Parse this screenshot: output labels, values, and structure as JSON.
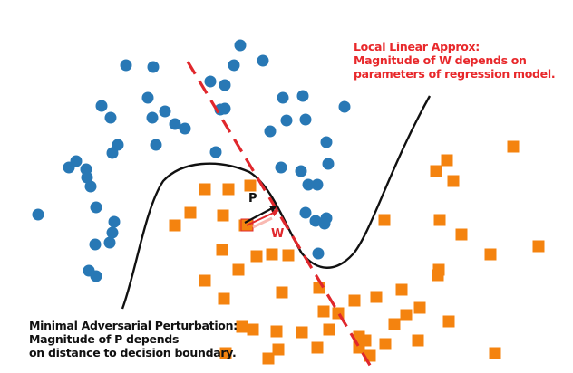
{
  "annotations": {
    "local_linear": [
      "Local Linear Approx:",
      "Magnitude of W depends on",
      "parameters of regression model."
    ],
    "minimal_perturbation": [
      "Minimal Adversarial Perturbation:",
      "Magnitude of P depends",
      "on distance to decision boundary."
    ]
  },
  "vectors": {
    "p_label": "P",
    "w_label": "W"
  },
  "colors": {
    "blue_class": "#2878b5",
    "orange_class": "#f4830f",
    "linear_approx": "#e0272c",
    "boundary": "#111111"
  },
  "chart_data": {
    "type": "scatter",
    "series": [
      {
        "class": "blue",
        "marker": "circle",
        "points": [
          [
            265,
            50
          ],
          [
            139,
            72
          ],
          [
            169,
            74
          ],
          [
            258,
            72
          ],
          [
            290,
            67
          ],
          [
            232,
            90
          ],
          [
            248,
            94
          ],
          [
            163,
            108
          ],
          [
            112,
            117
          ],
          [
            122,
            130
          ],
          [
            168,
            130
          ],
          [
            182,
            123
          ],
          [
            193,
            137
          ],
          [
            204,
            142
          ],
          [
            243,
            121
          ],
          [
            248,
            120
          ],
          [
            312,
            108
          ],
          [
            334,
            106
          ],
          [
            380,
            118
          ],
          [
            316,
            133
          ],
          [
            337,
            132
          ],
          [
            298,
            145
          ],
          [
            130,
            160
          ],
          [
            172,
            160
          ],
          [
            124,
            169
          ],
          [
            238,
            168
          ],
          [
            360,
            157
          ],
          [
            84,
            178
          ],
          [
            76,
            185
          ],
          [
            95,
            187
          ],
          [
            96,
            196
          ],
          [
            100,
            206
          ],
          [
            310,
            185
          ],
          [
            332,
            189
          ],
          [
            362,
            181
          ],
          [
            340,
            204
          ],
          [
            350,
            204
          ],
          [
            106,
            229
          ],
          [
            126,
            245
          ],
          [
            124,
            257
          ],
          [
            121,
            268
          ],
          [
            105,
            270
          ],
          [
            42,
            237
          ],
          [
            337,
            235
          ],
          [
            348,
            244
          ],
          [
            360,
            241
          ],
          [
            358,
            247
          ],
          [
            351,
            280
          ],
          [
            98,
            299
          ],
          [
            106,
            305
          ]
        ]
      },
      {
        "class": "orange",
        "marker": "square",
        "points": [
          [
            566,
            162
          ],
          [
            493,
            177
          ],
          [
            481,
            189
          ],
          [
            500,
            200
          ],
          [
            226,
            209
          ],
          [
            252,
            209
          ],
          [
            276,
            205
          ],
          [
            210,
            235
          ],
          [
            246,
            238
          ],
          [
            193,
            249
          ],
          [
            270,
            249
          ],
          [
            424,
            243
          ],
          [
            485,
            243
          ],
          [
            509,
            259
          ],
          [
            594,
            272
          ],
          [
            541,
            281
          ],
          [
            245,
            276
          ],
          [
            283,
            283
          ],
          [
            300,
            281
          ],
          [
            318,
            282
          ],
          [
            263,
            298
          ],
          [
            484,
            298
          ],
          [
            483,
            304
          ],
          [
            226,
            310
          ],
          [
            311,
            323
          ],
          [
            352,
            318
          ],
          [
            415,
            328
          ],
          [
            443,
            320
          ],
          [
            391,
            332
          ],
          [
            463,
            340
          ],
          [
            247,
            330
          ],
          [
            357,
            344
          ],
          [
            373,
            346
          ],
          [
            448,
            348
          ],
          [
            435,
            358
          ],
          [
            495,
            355
          ],
          [
            267,
            361
          ],
          [
            279,
            364
          ],
          [
            305,
            366
          ],
          [
            333,
            367
          ],
          [
            363,
            364
          ],
          [
            396,
            372
          ],
          [
            403,
            376
          ],
          [
            425,
            380
          ],
          [
            461,
            376
          ],
          [
            350,
            384
          ],
          [
            396,
            384
          ],
          [
            307,
            386
          ],
          [
            249,
            390
          ],
          [
            296,
            396
          ],
          [
            408,
            393
          ],
          [
            546,
            390
          ]
        ]
      }
    ]
  }
}
